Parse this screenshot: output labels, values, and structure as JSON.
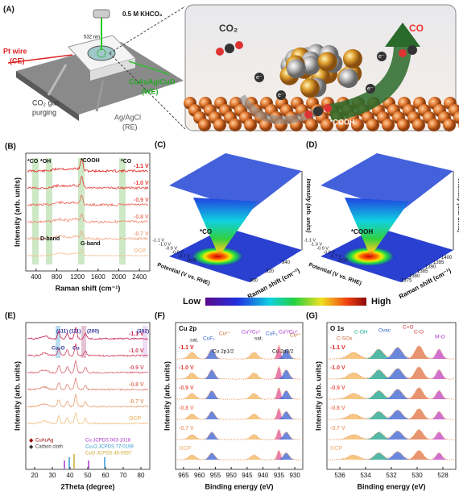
{
  "panel_a": {
    "label": "(A)",
    "electrolyte": "0.5 M KHCO₃",
    "laser": "532 nm",
    "counter": [
      "Pt wire",
      "(CE)"
    ],
    "working": [
      "CuAuAg/CuO",
      "(WE)"
    ],
    "gas": [
      "CO₂ gas",
      "purging"
    ],
    "reference": [
      "Ag/AgCl",
      "(RE)"
    ],
    "reactant": "CO₂",
    "product": "CO",
    "intermediate": "*COOH",
    "electron": "e⁻"
  },
  "panel_b": {
    "label": "(B)",
    "ylabel": "Intensity (arb. units)",
    "xlabel": "Raman shift (cm⁻¹)",
    "xticks": [
      "400",
      "800",
      "1200",
      "1600",
      "2000",
      "2400"
    ],
    "potentials": [
      "-1.1 V",
      "-1.0 V",
      "-0.9 V",
      "-0.8 V",
      "-0.7 V",
      "OCP"
    ],
    "annotations": [
      "*CO",
      "*OH",
      "*COOH",
      "*CO",
      "D-band",
      "G-band"
    ]
  },
  "panel_c": {
    "label": "(C)",
    "annotation": "*CO",
    "zlabel": "Intensity (arb. units)",
    "xlabel": "Raman shift (cm⁻¹)",
    "ylabel": "Potential (V vs. RHE)",
    "xticks": [
      "300",
      "320",
      "340"
    ],
    "yticks": [
      "-1.1 V",
      "-1.0 V",
      "-0.9 V",
      "-0.8 V",
      "-0.7 V",
      "OCP"
    ]
  },
  "panel_d": {
    "label": "(D)",
    "annotation": "*COOH",
    "zlabel": "Intensity (arb. units)",
    "xlabel": "Raman shift (cm⁻¹)",
    "ylabel": "Potential (V vs. RHE)",
    "xticks": [
      "1375",
      "1380",
      "1385",
      "1390",
      "1395",
      "1400"
    ],
    "yticks": [
      "-1.1 V",
      "-1.0 V",
      "-0.9 V",
      "-0.8 V",
      "-0.7 V",
      "OCP"
    ]
  },
  "colorbar": {
    "low": "Low",
    "high": "High"
  },
  "panel_e": {
    "label": "(E)",
    "ylabel": "Intensity (arb. units)",
    "xlabel": "2Theta (degree)",
    "xticks": [
      "20",
      "30",
      "40",
      "50",
      "60",
      "70",
      "80"
    ],
    "potentials": [
      "-1.1 V",
      "-1.0 V",
      "-0.9 V",
      "-0.8 V",
      "-0.7 V",
      "OCP"
    ],
    "annotations": [
      "Cu₂O",
      "Cu",
      "(111)",
      "(111)",
      "(200)",
      "(202)"
    ],
    "legend": [
      "CuAuAg",
      "Carbon cloth",
      "Cu JCPDS 003-1018",
      "Cu₂O JCPDS 77-0199",
      "CuO JCPDS 45-0937"
    ]
  },
  "panel_f": {
    "label": "(F)",
    "title": "Cu 2p",
    "ylabel": "Intensity (arb. units)",
    "xlabel": "Binding energy (eV)",
    "xticks": [
      "965",
      "960",
      "955",
      "950",
      "945",
      "940",
      "935",
      "930"
    ],
    "potentials": [
      "-1.1 V",
      "-1.0 V",
      "-0.9 V",
      "-0.8 V",
      "-0.7 V",
      "OCP"
    ],
    "annotations": [
      "sat.",
      "CuF₂",
      "Cu²⁺",
      "Cu⁰/Cu⁺",
      "sat.",
      "CuF₂",
      "Cu⁰/Cu⁺",
      "Cu²⁺",
      "Cu 2p1/2",
      "Cu 2p3/2"
    ]
  },
  "panel_g": {
    "label": "(G)",
    "title": "O 1s",
    "ylabel": "Intensity (arb. units)",
    "xlabel": "Binding energy (eV)",
    "xticks": [
      "536",
      "534",
      "532",
      "530",
      "528"
    ],
    "potentials": [
      "-1.1 V",
      "-1.0 V",
      "-0.9 V",
      "-0.8 V",
      "-0.7 V",
      "OCP"
    ],
    "annotations": [
      "C-SOx",
      "C-OH",
      "Ovac",
      "C=O",
      "C-O",
      "M-O"
    ]
  }
}
